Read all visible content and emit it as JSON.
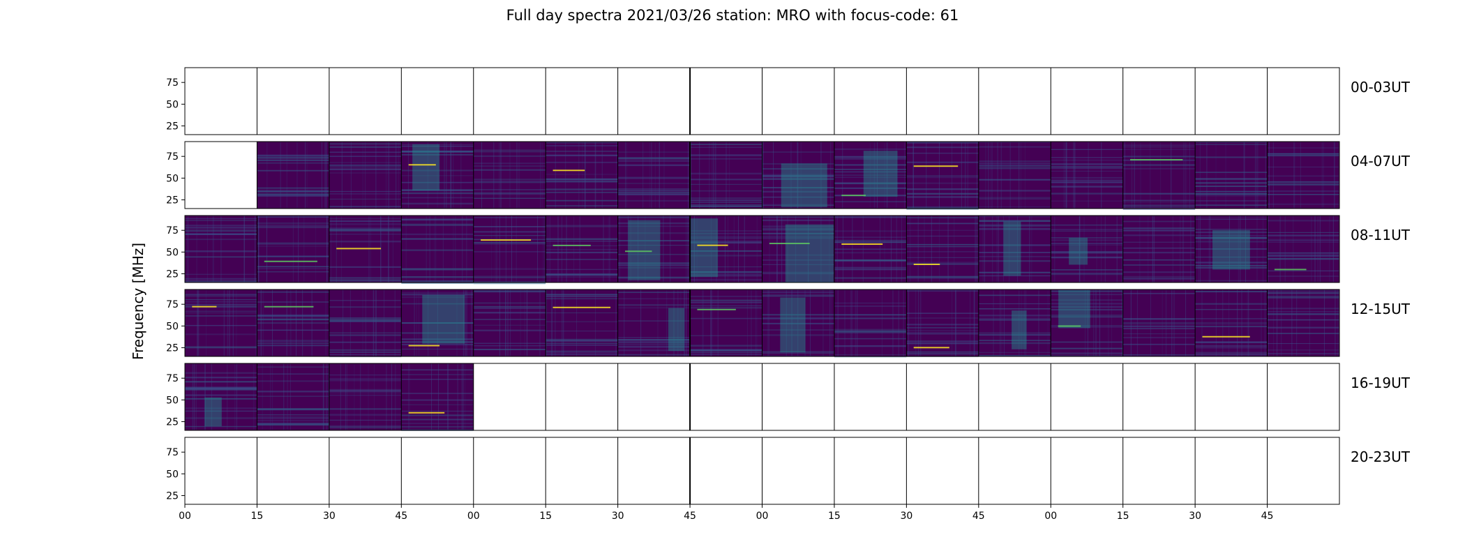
{
  "chart_data": {
    "type": "heatmap",
    "title": "Full day spectra 2021/03/26 station: MRO with focus-code: 61",
    "ylabel": "Frequency [MHz]",
    "xlabel": "",
    "colormap": "viridis",
    "x_ticks": [
      "00",
      "15",
      "30",
      "45",
      "00",
      "15",
      "30",
      "45",
      "00",
      "15",
      "30",
      "45",
      "00",
      "15",
      "30",
      "45"
    ],
    "y_ticks": [
      75,
      50,
      25
    ],
    "ylim": [
      15,
      92
    ],
    "panels_per_row": 16,
    "rows": [
      {
        "label": "00-03UT",
        "start": 0,
        "end": 0
      },
      {
        "label": "04-07UT",
        "start": 1,
        "end": 16
      },
      {
        "label": "08-11UT",
        "start": 0,
        "end": 16
      },
      {
        "label": "12-15UT",
        "start": 0,
        "end": 16
      },
      {
        "label": "16-19UT",
        "start": 0,
        "end": 4
      },
      {
        "label": "20-23UT",
        "start": 0,
        "end": 0
      }
    ],
    "colors": {
      "background": "#440154",
      "mid": "#3b528b",
      "bright": "#21918c",
      "hot": "#5ec962",
      "peak": "#fde725"
    }
  }
}
